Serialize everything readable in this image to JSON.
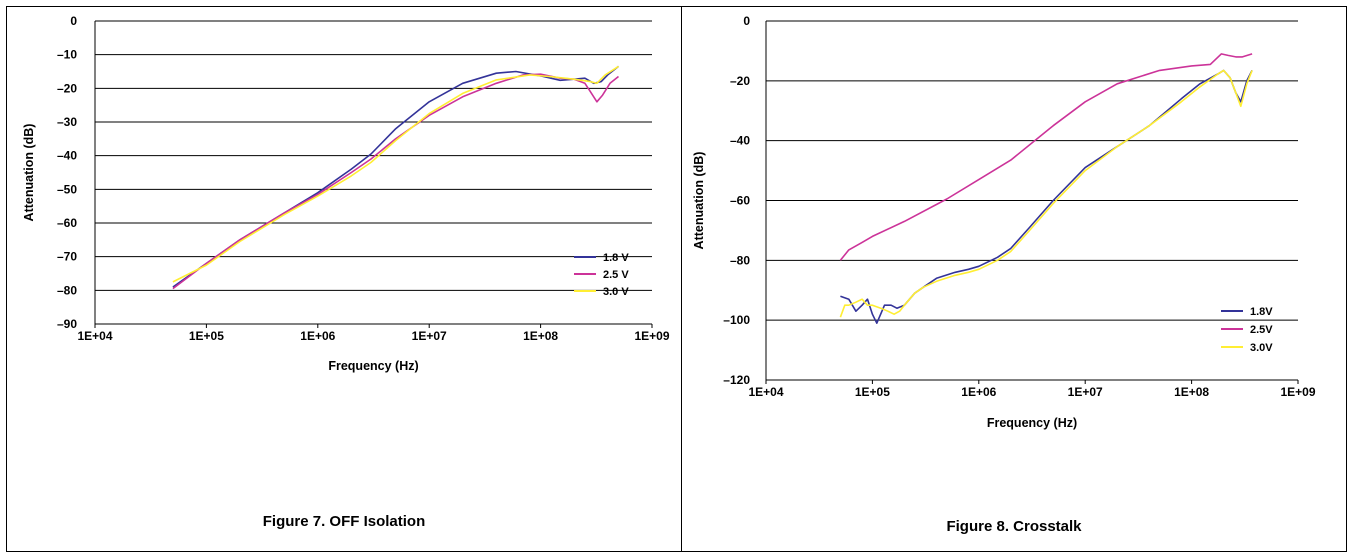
{
  "chart_data": [
    {
      "type": "line",
      "caption": "Figure 7. OFF Isolation",
      "xlabel": "Frequency (Hz)",
      "ylabel": "Attenuation (dB)",
      "x_scale": "log",
      "xlim": [
        10000,
        1000000000
      ],
      "ylim": [
        -90,
        0
      ],
      "x_ticks": [
        10000,
        100000,
        1000000,
        10000000,
        100000000,
        1000000000
      ],
      "x_tick_labels": [
        "1E+04",
        "1E+05",
        "1E+06",
        "1E+07",
        "1E+08",
        "1E+09"
      ],
      "y_ticks": [
        0,
        -10,
        -20,
        -30,
        -40,
        -50,
        -60,
        -70,
        -80,
        -90
      ],
      "y_tick_labels": [
        "0",
        "–10",
        "–20",
        "–30",
        "–40",
        "–50",
        "–60",
        "–70",
        "–80",
        "–90"
      ],
      "grid": "horizontal",
      "legend_position": "bottom-right",
      "series": [
        {
          "name": "1.8 V",
          "color": "#333399",
          "x": [
            50000,
            100000,
            200000,
            500000,
            1000000,
            2000000,
            3000000,
            5000000,
            10000000,
            20000000,
            40000000,
            60000000,
            100000000,
            150000000,
            200000000,
            250000000,
            300000000,
            350000000,
            400000000,
            500000000
          ],
          "y": [
            -79,
            -72,
            -65,
            -57,
            -51,
            -44,
            -39.5,
            -32,
            -24,
            -18.5,
            -15.5,
            -15,
            -16.3,
            -17.6,
            -17.3,
            -17,
            -18.5,
            -18,
            -16,
            -13.5
          ]
        },
        {
          "name": "2.5 V",
          "color": "#cc3399",
          "x": [
            50000,
            100000,
            200000,
            500000,
            1000000,
            2000000,
            3000000,
            5000000,
            10000000,
            20000000,
            40000000,
            70000000,
            100000000,
            150000000,
            200000000,
            250000000,
            280000000,
            320000000,
            360000000,
            420000000,
            500000000
          ],
          "y": [
            -79.5,
            -72,
            -65,
            -57,
            -51.5,
            -45,
            -41,
            -35,
            -28,
            -22.5,
            -18.5,
            -16,
            -15.8,
            -17,
            -17.3,
            -18.5,
            -21,
            -24,
            -22,
            -18.5,
            -16.5
          ]
        },
        {
          "name": "3.0 V",
          "color": "#ffee33",
          "x": [
            50000,
            100000,
            200000,
            500000,
            1000000,
            2000000,
            3000000,
            5000000,
            10000000,
            20000000,
            40000000,
            80000000,
            120000000,
            200000000,
            280000000,
            320000000,
            380000000,
            500000000
          ],
          "y": [
            -77.5,
            -72.5,
            -65.5,
            -57.5,
            -52,
            -46,
            -42,
            -35.5,
            -27.5,
            -21.5,
            -17.5,
            -16,
            -16.5,
            -17.3,
            -18,
            -18.5,
            -16,
            -13.5
          ]
        }
      ]
    },
    {
      "type": "line",
      "caption": "Figure 8. Crosstalk",
      "xlabel": "Frequency (Hz)",
      "ylabel": "Attenuation (dB)",
      "x_scale": "log",
      "xlim": [
        10000,
        1000000000
      ],
      "ylim": [
        -120,
        0
      ],
      "x_ticks": [
        10000,
        100000,
        1000000,
        10000000,
        100000000,
        1000000000
      ],
      "x_tick_labels": [
        "1E+04",
        "1E+05",
        "1E+06",
        "1E+07",
        "1E+08",
        "1E+09"
      ],
      "y_ticks": [
        0,
        -20,
        -40,
        -60,
        -80,
        -100,
        -120
      ],
      "y_tick_labels": [
        "0",
        "–20",
        "–40",
        "–60",
        "–80",
        "–100",
        "–120"
      ],
      "grid": "horizontal",
      "legend_position": "bottom-right",
      "series": [
        {
          "name": "1.8V",
          "color": "#333399",
          "x": [
            50000,
            60000,
            70000,
            80000,
            90000,
            100000,
            110000,
            130000,
            150000,
            170000,
            200000,
            250000,
            300000,
            400000,
            600000,
            800000,
            1000000,
            1500000,
            2000000,
            3000000,
            5000000,
            10000000,
            20000000,
            40000000,
            80000000,
            120000000,
            180000000,
            200000000,
            230000000,
            260000000,
            290000000,
            330000000,
            370000000
          ],
          "y": [
            -92,
            -93,
            -97,
            -95,
            -93,
            -98,
            -101,
            -95,
            -95,
            -96,
            -95,
            -91,
            -89,
            -86,
            -84,
            -83,
            -82,
            -79,
            -76,
            -69,
            -60,
            -49,
            -42,
            -35,
            -26,
            -21,
            -17.5,
            -16.5,
            -19,
            -24,
            -27,
            -20,
            -16.5
          ]
        },
        {
          "name": "2.5V",
          "color": "#cc3399",
          "x": [
            50000,
            60000,
            80000,
            100000,
            200000,
            500000,
            1000000,
            2000000,
            5000000,
            10000000,
            20000000,
            50000000,
            100000000,
            150000000,
            190000000,
            220000000,
            260000000,
            300000000,
            370000000
          ],
          "y": [
            -80,
            -76.5,
            -74,
            -72,
            -67,
            -59.5,
            -53,
            -46.5,
            -35,
            -27,
            -21,
            -16.5,
            -15,
            -14.5,
            -11,
            -11.5,
            -12,
            -12,
            -11
          ]
        },
        {
          "name": "3.0V",
          "color": "#ffee33",
          "x": [
            50000,
            55000,
            60000,
            70000,
            80000,
            90000,
            100000,
            120000,
            140000,
            160000,
            180000,
            200000,
            250000,
            300000,
            400000,
            600000,
            800000,
            1000000,
            1500000,
            2000000,
            3000000,
            5000000,
            10000000,
            20000000,
            40000000,
            80000000,
            120000000,
            180000000,
            200000000,
            230000000,
            260000000,
            290000000,
            330000000,
            370000000
          ],
          "y": [
            -99,
            -95,
            -95,
            -94,
            -93,
            -95,
            -95,
            -96,
            -97,
            -98,
            -97,
            -95,
            -91,
            -89,
            -87,
            -85,
            -84,
            -83,
            -80,
            -77,
            -70,
            -61,
            -50,
            -42,
            -35,
            -27,
            -22,
            -17.5,
            -16.5,
            -19,
            -24,
            -28.5,
            -21,
            -16.5
          ]
        }
      ]
    }
  ]
}
